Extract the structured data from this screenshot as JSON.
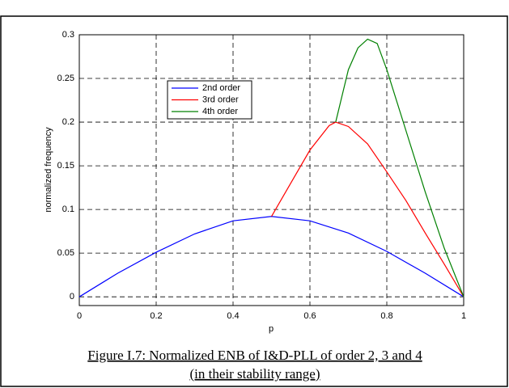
{
  "chart_data": {
    "type": "line",
    "xlabel": "p",
    "ylabel": "normalized frequency",
    "caption": [
      "Figure I.7: Normalized ENB of I&D-PLL of order 2, 3 and 4",
      "(in their stability range)"
    ],
    "xlim": [
      0,
      1
    ],
    "ylim": [
      -0.01,
      0.3
    ],
    "xticks": [
      0,
      0.2,
      0.4,
      0.6,
      0.8,
      1
    ],
    "yticks": [
      0,
      0.05,
      0.1,
      0.15,
      0.2,
      0.25,
      0.3
    ],
    "grid": true,
    "legend": "upper left",
    "series": [
      {
        "name": "2nd order",
        "color": "#0000ff",
        "x": [
          0,
          0.1,
          0.2,
          0.3,
          0.4,
          0.5,
          0.6,
          0.7,
          0.8,
          0.9,
          1
        ],
        "values": [
          0,
          0.027,
          0.051,
          0.072,
          0.087,
          0.092,
          0.087,
          0.073,
          0.052,
          0.027,
          0
        ]
      },
      {
        "name": "3rd order",
        "color": "#ff0000",
        "x": [
          0.5,
          0.55,
          0.6,
          0.65,
          0.667,
          0.7,
          0.75,
          0.8,
          0.85,
          0.9,
          0.95,
          1
        ],
        "values": [
          0.092,
          0.13,
          0.168,
          0.196,
          0.2,
          0.195,
          0.175,
          0.143,
          0.11,
          0.073,
          0.037,
          0
        ]
      },
      {
        "name": "4th order",
        "color": "#008000",
        "x": [
          0.667,
          0.7,
          0.725,
          0.75,
          0.775,
          0.8,
          0.85,
          0.9,
          0.95,
          1
        ],
        "values": [
          0.2,
          0.26,
          0.285,
          0.295,
          0.29,
          0.26,
          0.19,
          0.12,
          0.055,
          0
        ]
      }
    ]
  }
}
